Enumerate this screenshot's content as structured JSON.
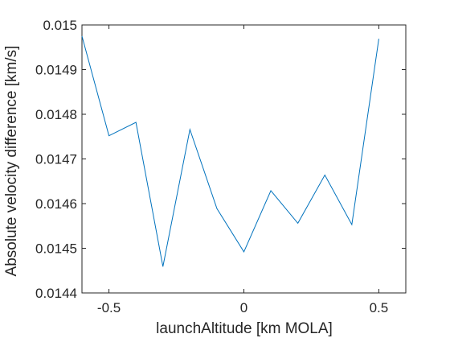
{
  "chart_data": {
    "type": "line",
    "title": "",
    "xlabel": "launchAltitude [km MOLA]",
    "ylabel": "Absolute velocity difference [km/s]",
    "xlim": [
      -0.6,
      0.6
    ],
    "ylim": [
      0.0144,
      0.015
    ],
    "grid": false,
    "legend": "none",
    "x_ticks": [
      -0.5,
      0,
      0.5
    ],
    "x_tick_labels": [
      "-0.5",
      "0",
      "0.5"
    ],
    "y_ticks": [
      0.0144,
      0.0145,
      0.0146,
      0.0147,
      0.0148,
      0.0149,
      0.015
    ],
    "y_tick_labels": [
      "0.0144",
      "0.0145",
      "0.0146",
      "0.0147",
      "0.0148",
      "0.0149",
      "0.015"
    ],
    "series": [
      {
        "color": "#0072bd",
        "x": [
          -0.6,
          -0.5,
          -0.4,
          -0.3,
          -0.2,
          -0.1,
          0.0,
          0.1,
          0.2,
          0.3,
          0.4,
          0.5
        ],
        "y": [
          0.014975,
          0.014752,
          0.014782,
          0.014459,
          0.014766,
          0.014589,
          0.014492,
          0.014629,
          0.014556,
          0.014664,
          0.014553,
          0.014969
        ]
      }
    ]
  }
}
